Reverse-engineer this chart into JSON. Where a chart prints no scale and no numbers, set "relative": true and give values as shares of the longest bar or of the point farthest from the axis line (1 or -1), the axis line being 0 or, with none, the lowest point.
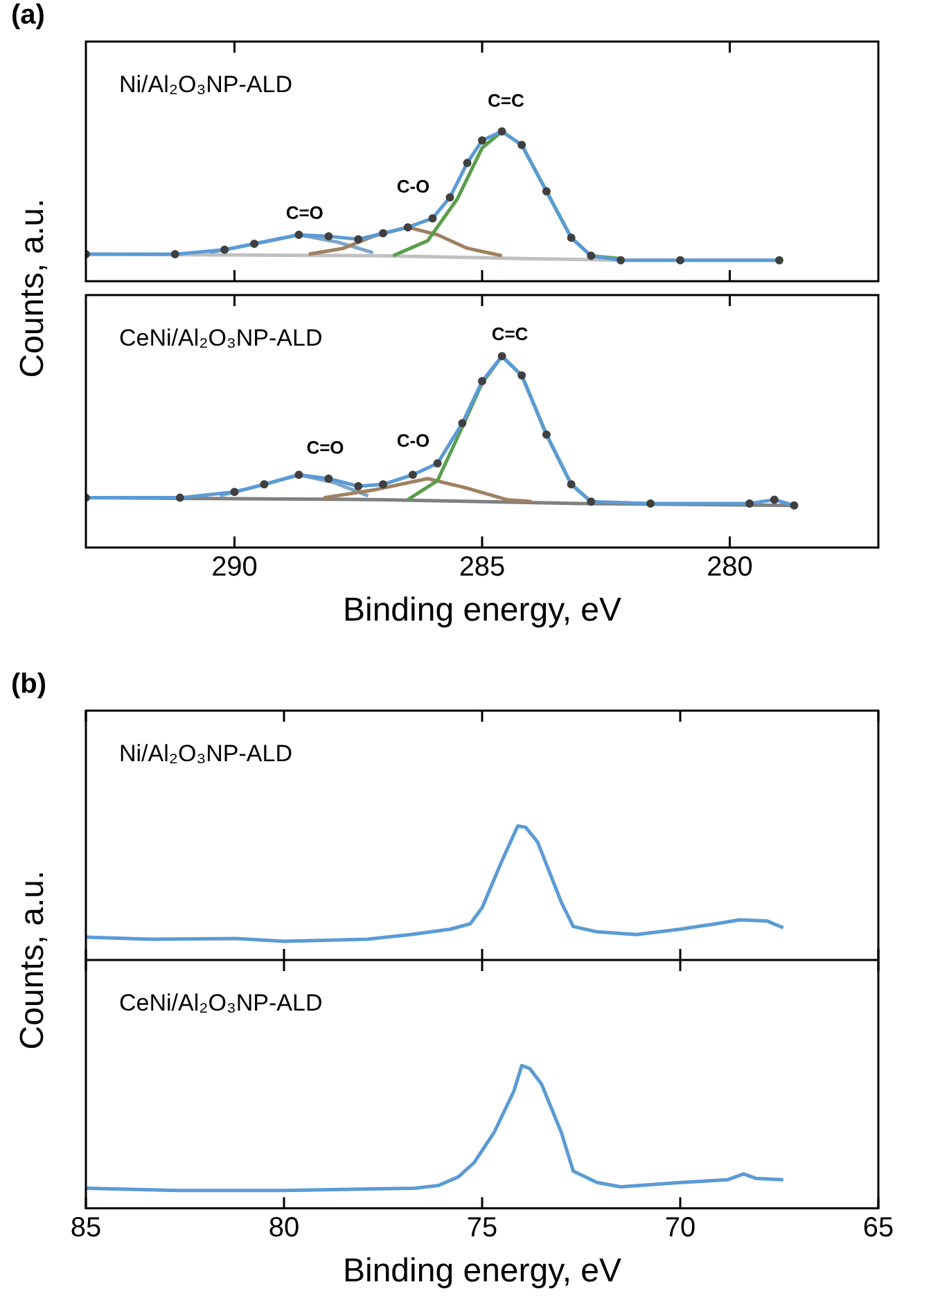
{
  "chart_data": [
    {
      "type": "line",
      "title": "(a)",
      "subtitle": "Ni/Al₂O₃NP-ALD",
      "relative": true,
      "tick_labels": false,
      "xlim": [
        293,
        277
      ],
      "xticks": [
        290,
        285,
        280
      ],
      "annotations": [
        "C=O",
        "C-O",
        "C=C"
      ],
      "series": [
        {
          "type": "line",
          "color": "#c0c0c0",
          "x": [
            293,
            287,
            284,
            282,
            279
          ],
          "values": [
            0.18,
            0.17,
            0.15,
            0.14,
            0.14
          ]
        },
        {
          "type": "line",
          "color": "#7fa6c9",
          "x": [
            290.5,
            289.6,
            288.7,
            287.9,
            287.2
          ],
          "values": [
            0.19,
            0.25,
            0.31,
            0.26,
            0.19
          ]
        },
        {
          "type": "line",
          "color": "#a08060",
          "x": [
            288.5,
            287.8,
            287.2,
            286.5,
            285.9,
            285.3,
            284.6
          ],
          "values": [
            0.18,
            0.22,
            0.3,
            0.36,
            0.31,
            0.22,
            0.17
          ]
        },
        {
          "type": "line",
          "color": "#5a9e4b",
          "x": [
            286.8,
            286.1,
            285.5,
            285,
            284.6,
            284.2,
            283.7,
            283.2,
            282.8,
            282.2
          ],
          "values": [
            0.17,
            0.27,
            0.55,
            0.89,
            1.0,
            0.91,
            0.6,
            0.29,
            0.17,
            0.15
          ]
        },
        {
          "type": "scatter",
          "marker": "circle",
          "color": "#404040",
          "x": [
            293,
            291.2,
            290.2,
            289.6,
            288.7,
            288.1,
            287.5,
            287,
            286.5,
            286,
            285.65,
            285.3,
            285,
            284.6,
            284.2,
            283.7,
            283.2,
            282.8,
            282.2,
            281,
            279
          ],
          "values": [
            0.18,
            0.18,
            0.21,
            0.25,
            0.31,
            0.3,
            0.28,
            0.32,
            0.36,
            0.42,
            0.56,
            0.79,
            0.94,
            1.0,
            0.91,
            0.6,
            0.29,
            0.17,
            0.14,
            0.14,
            0.14
          ]
        },
        {
          "type": "line",
          "color": "#5b9bd5",
          "x": [
            293,
            291.2,
            290.2,
            289.6,
            288.7,
            288.1,
            287.5,
            287,
            286.5,
            286,
            285.65,
            285.3,
            285,
            284.6,
            284.2,
            283.7,
            283.2,
            282.8,
            282.2,
            281,
            279
          ],
          "values": [
            0.18,
            0.18,
            0.21,
            0.25,
            0.31,
            0.3,
            0.28,
            0.32,
            0.36,
            0.42,
            0.56,
            0.79,
            0.94,
            1.0,
            0.91,
            0.6,
            0.29,
            0.17,
            0.14,
            0.14,
            0.14
          ]
        }
      ]
    },
    {
      "type": "line",
      "subtitle": "CeNi/Al₂O₃NP-ALD",
      "relative": true,
      "tick_labels": "x",
      "xlabel": "Binding energy, eV",
      "ylabel": "Counts, a.u.",
      "xlim": [
        293,
        277
      ],
      "xticks": [
        290,
        285,
        280
      ],
      "annotations": [
        "C=O",
        "C-O",
        "C=C"
      ],
      "series": [
        {
          "type": "line",
          "color": "#808080",
          "x": [
            293,
            287,
            283,
            278.7
          ],
          "values": [
            0.26,
            0.25,
            0.23,
            0.22
          ]
        },
        {
          "type": "line",
          "color": "#7fa6c9",
          "x": [
            290.3,
            289.4,
            288.7,
            288,
            287.3
          ],
          "values": [
            0.27,
            0.33,
            0.38,
            0.34,
            0.27
          ]
        },
        {
          "type": "line",
          "color": "#a08060",
          "x": [
            288.2,
            287.2,
            286.1,
            285.3,
            284.5,
            284
          ],
          "values": [
            0.26,
            0.3,
            0.36,
            0.31,
            0.25,
            0.24
          ]
        },
        {
          "type": "line",
          "color": "#5a9e4b",
          "x": [
            286.5,
            285.9,
            285.4,
            285,
            284.6,
            284.2,
            283.7,
            283.2,
            282.8
          ],
          "values": [
            0.25,
            0.35,
            0.63,
            0.86,
            1.0,
            0.9,
            0.59,
            0.33,
            0.24
          ]
        },
        {
          "type": "scatter",
          "marker": "circle",
          "color": "#404040",
          "x": [
            293,
            291.1,
            290,
            289.4,
            288.7,
            288.1,
            287.5,
            287,
            286.4,
            285.9,
            285.4,
            285,
            284.6,
            284.2,
            283.7,
            283.2,
            282.8,
            281.6,
            279.6,
            279.1,
            278.7
          ],
          "values": [
            0.26,
            0.26,
            0.29,
            0.33,
            0.38,
            0.36,
            0.32,
            0.33,
            0.38,
            0.44,
            0.65,
            0.87,
            1.0,
            0.9,
            0.59,
            0.33,
            0.24,
            0.23,
            0.23,
            0.25,
            0.22
          ]
        },
        {
          "type": "line",
          "color": "#5b9bd5",
          "x": [
            293,
            291.1,
            290,
            289.4,
            288.7,
            288.1,
            287.5,
            287,
            286.4,
            285.9,
            285.4,
            285,
            284.6,
            284.2,
            283.7,
            283.2,
            282.8,
            281.6,
            279.6,
            279.1,
            278.7
          ],
          "values": [
            0.26,
            0.26,
            0.29,
            0.33,
            0.38,
            0.36,
            0.32,
            0.33,
            0.38,
            0.44,
            0.65,
            0.87,
            1.0,
            0.9,
            0.59,
            0.33,
            0.24,
            0.23,
            0.23,
            0.25,
            0.22
          ]
        }
      ]
    },
    {
      "type": "line",
      "title": "(b)",
      "subtitle": "Ni/Al₂O₃NP-ALD",
      "relative": true,
      "tick_labels": false,
      "xlim": [
        85,
        65
      ],
      "xticks": [
        85,
        80,
        75,
        70,
        65
      ],
      "series": [
        {
          "type": "line",
          "color": "#5b9bd5",
          "x": [
            85,
            83.4,
            81.2,
            80,
            77.9,
            76.8,
            75.8,
            75.3,
            75,
            74.5,
            74.1,
            73.9,
            73.6,
            73,
            72.7,
            72.1,
            71.1,
            70,
            69.1,
            68.5,
            67.8,
            67.4
          ],
          "values": [
            0.17,
            0.155,
            0.16,
            0.14,
            0.155,
            0.19,
            0.23,
            0.27,
            0.39,
            0.74,
            1.0,
            0.99,
            0.88,
            0.43,
            0.25,
            0.21,
            0.19,
            0.23,
            0.27,
            0.3,
            0.29,
            0.24
          ]
        }
      ]
    },
    {
      "type": "line",
      "subtitle": "CeNi/Al₂O₃NP-ALD",
      "relative": true,
      "tick_labels": "x",
      "xlabel": "Binding energy, eV",
      "ylabel": "Counts, a.u.",
      "xlim": [
        85,
        65
      ],
      "xticks": [
        85,
        80,
        75,
        70,
        65
      ],
      "series": [
        {
          "type": "line",
          "color": "#5b9bd5",
          "x": [
            85,
            82.7,
            80,
            76.7,
            76.1,
            75.6,
            75.2,
            74.7,
            74.2,
            74,
            73.8,
            73.5,
            73,
            72.7,
            72.1,
            71.5,
            70,
            68.8,
            68.4,
            68.1,
            67.4
          ],
          "values": [
            0.14,
            0.125,
            0.125,
            0.14,
            0.16,
            0.22,
            0.32,
            0.53,
            0.82,
            1.0,
            0.98,
            0.87,
            0.53,
            0.26,
            0.18,
            0.15,
            0.18,
            0.2,
            0.24,
            0.21,
            0.2
          ]
        }
      ]
    }
  ]
}
